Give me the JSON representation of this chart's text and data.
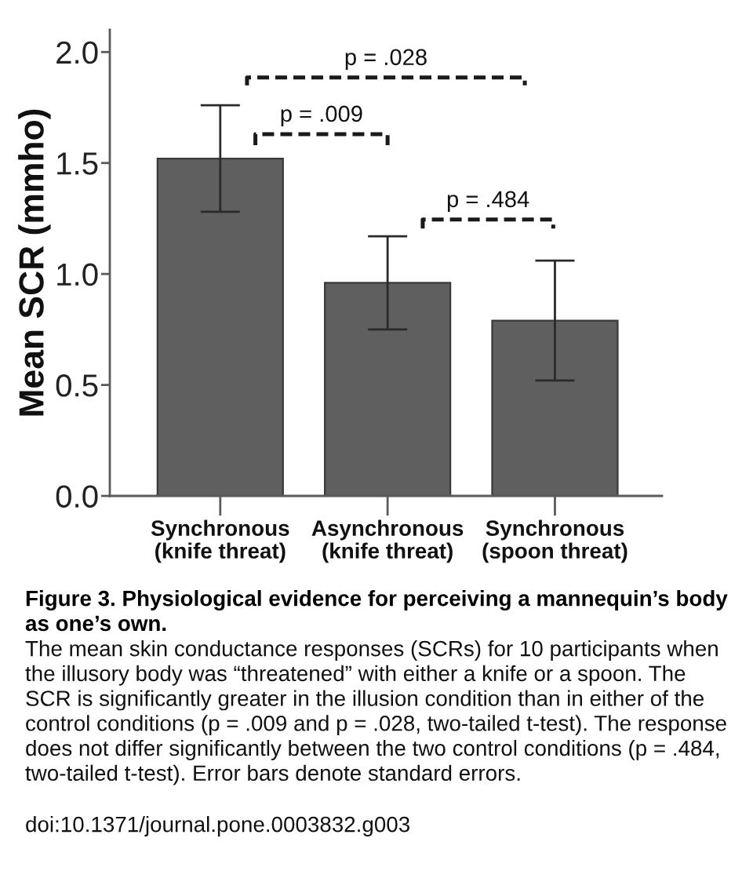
{
  "chart_data": {
    "type": "bar",
    "title": "Figure 3. Physiological evidence for perceiving a mannequin’s body as one’s own.",
    "ylabel": "Mean SCR (mmho)",
    "categories": [
      "Synchronous\n(knife threat)",
      "Asynchronous\n(knife threat)",
      "Synchronous\n(spoon threat)"
    ],
    "values": [
      1.52,
      0.96,
      0.79
    ],
    "errors": [
      0.24,
      0.21,
      0.27
    ],
    "color": "#5f5f5f",
    "ylim": [
      0,
      2.1
    ],
    "yticks": [
      {
        "value": 0,
        "label": "0.0"
      },
      0.5,
      {
        "value": 1,
        "label": "1.0"
      },
      1.5,
      {
        "value": 2,
        "label": "2.0"
      }
    ],
    "grid": false,
    "annotations": [
      "p = .028",
      "p = .009",
      "p = .484",
      "The mean skin conductance responses (SCRs) for 10 participants when the illusory body was “threatened” with either a knife or a spoon. The SCR is significantly greater in the illusion condition than in either of the control conditions (p = .009 and p = .028, two-tailed t-test). The response does not differ significantly between the two control conditions (p = .484, two-tailed t-test). Error bars denote standard errors.",
      "doi:10.1371/journal.pone.0003832.g003"
    ]
  }
}
